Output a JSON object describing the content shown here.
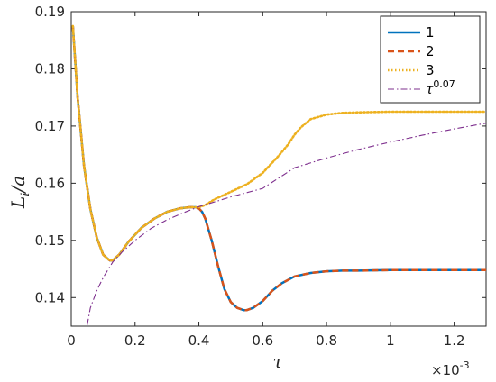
{
  "chart_data": {
    "type": "line",
    "title": "",
    "xlabel": "τ",
    "ylabel_main": "L",
    "ylabel_sub": "i",
    "ylabel_tail": "/a",
    "x_exponent_base": "×10",
    "x_exponent": "-3",
    "xlim": [
      0,
      1.3
    ],
    "ylim": [
      0.135,
      0.19
    ],
    "x_ticks": [
      0,
      0.2,
      0.4,
      0.6,
      0.8,
      1,
      1.2
    ],
    "x_tick_labels": [
      "0",
      "0.2",
      "0.4",
      "0.6",
      "0.8",
      "1",
      "1.2"
    ],
    "y_ticks": [
      0.14,
      0.15,
      0.16,
      0.17,
      0.18,
      0.19
    ],
    "y_tick_labels": [
      "0.14",
      "0.15",
      "0.16",
      "0.17",
      "0.18",
      "0.19"
    ],
    "grid": false,
    "legend_position": "top-right",
    "series": [
      {
        "name": "1",
        "color": "#0072BD",
        "style": "solid",
        "x": [
          0.005,
          0.02,
          0.04,
          0.06,
          0.08,
          0.1,
          0.12,
          0.13,
          0.15,
          0.18,
          0.22,
          0.26,
          0.3,
          0.34,
          0.37,
          0.39,
          0.4,
          0.41,
          0.42,
          0.44,
          0.46,
          0.48,
          0.5,
          0.52,
          0.54,
          0.55,
          0.57,
          0.6,
          0.63,
          0.66,
          0.7,
          0.75,
          0.8,
          0.85,
          0.9,
          1.0,
          1.1,
          1.2,
          1.3
        ],
        "values": [
          0.1875,
          0.175,
          0.163,
          0.1555,
          0.1505,
          0.1475,
          0.1465,
          0.1465,
          0.1475,
          0.1498,
          0.1522,
          0.1538,
          0.155,
          0.1556,
          0.1558,
          0.1558,
          0.1556,
          0.155,
          0.1538,
          0.15,
          0.1455,
          0.1415,
          0.1392,
          0.1382,
          0.1378,
          0.1378,
          0.1382,
          0.1394,
          0.1412,
          0.1425,
          0.1437,
          0.1443,
          0.1446,
          0.1447,
          0.1447,
          0.1448,
          0.1448,
          0.1448,
          0.1448
        ]
      },
      {
        "name": "2",
        "color": "#D95319",
        "style": "dashed",
        "x": [
          0.005,
          0.02,
          0.04,
          0.06,
          0.08,
          0.1,
          0.12,
          0.13,
          0.15,
          0.18,
          0.22,
          0.26,
          0.3,
          0.34,
          0.37,
          0.39,
          0.4,
          0.41,
          0.42,
          0.44,
          0.46,
          0.48,
          0.5,
          0.52,
          0.54,
          0.55,
          0.57,
          0.6,
          0.63,
          0.66,
          0.7,
          0.75,
          0.8,
          0.85,
          0.9,
          1.0,
          1.1,
          1.2,
          1.3
        ],
        "values": [
          0.1875,
          0.175,
          0.163,
          0.1555,
          0.1505,
          0.1475,
          0.1465,
          0.1465,
          0.1475,
          0.1498,
          0.1522,
          0.1538,
          0.155,
          0.1556,
          0.1558,
          0.1558,
          0.1556,
          0.155,
          0.1538,
          0.15,
          0.1455,
          0.1415,
          0.1392,
          0.1382,
          0.1378,
          0.1378,
          0.1382,
          0.1394,
          0.1412,
          0.1425,
          0.1437,
          0.1443,
          0.1446,
          0.1447,
          0.1447,
          0.1448,
          0.1448,
          0.1448,
          0.1448
        ]
      },
      {
        "name": "3",
        "color": "#EDB120",
        "style": "dotted",
        "x": [
          0.005,
          0.02,
          0.04,
          0.06,
          0.08,
          0.1,
          0.12,
          0.13,
          0.15,
          0.18,
          0.22,
          0.26,
          0.3,
          0.34,
          0.37,
          0.39,
          0.4,
          0.42,
          0.45,
          0.5,
          0.55,
          0.6,
          0.65,
          0.68,
          0.7,
          0.72,
          0.75,
          0.8,
          0.85,
          0.9,
          1.0,
          1.1,
          1.2,
          1.3
        ],
        "values": [
          0.1875,
          0.175,
          0.163,
          0.1555,
          0.1505,
          0.1475,
          0.1465,
          0.1465,
          0.1475,
          0.1498,
          0.1522,
          0.1538,
          0.155,
          0.1556,
          0.1558,
          0.1558,
          0.1558,
          0.1562,
          0.1572,
          0.1585,
          0.1598,
          0.1618,
          0.1648,
          0.1668,
          0.1685,
          0.1698,
          0.1712,
          0.172,
          0.1723,
          0.1724,
          0.1725,
          0.1725,
          0.1725,
          0.1725
        ]
      },
      {
        "name": "τ^0.07",
        "label_base": "τ",
        "label_exp": "0.07",
        "color": "#7E2F8E",
        "style": "dashdot",
        "x": [
          0.05,
          0.06,
          0.08,
          0.1,
          0.13,
          0.16,
          0.2,
          0.25,
          0.3,
          0.35,
          0.4,
          0.5,
          0.6,
          0.7,
          0.8,
          0.9,
          1.0,
          1.1,
          1.2,
          1.3
        ],
        "values": [
          0.1352,
          0.1382,
          0.1412,
          0.1435,
          0.1462,
          0.148,
          0.15,
          0.1521,
          0.1536,
          0.1548,
          0.1559,
          0.1576,
          0.1591,
          0.1627,
          0.1644,
          0.1659,
          0.1672,
          0.1684,
          0.1695,
          0.1705
        ]
      }
    ]
  }
}
